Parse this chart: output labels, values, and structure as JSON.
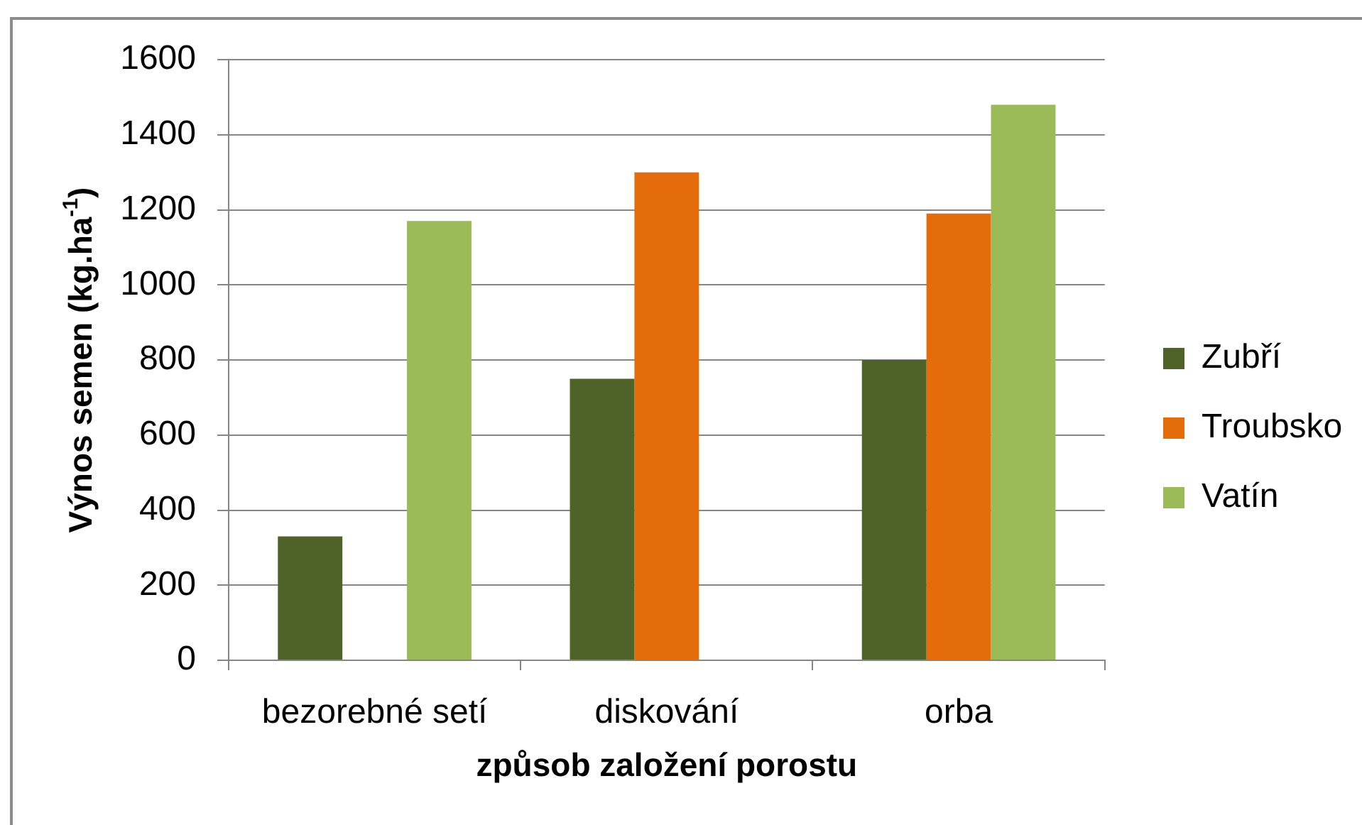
{
  "chart_data": {
    "type": "bar",
    "xlabel": "způsob založení porostu",
    "ylabel": "Výnos semen (kg.ha$^{-1}$)",
    "categories": [
      "bezorebné setí",
      "diskování",
      "orba"
    ],
    "series": [
      {
        "name": "Zubří",
        "color": "#4f6228",
        "values": [
          330,
          750,
          800
        ]
      },
      {
        "name": "Troubsko",
        "color": "#e46c0a",
        "values": [
          null,
          1300,
          1190
        ]
      },
      {
        "name": "Vatín",
        "color": "#9bbb59",
        "values": [
          1170,
          null,
          1480
        ]
      }
    ],
    "ylim": [
      0,
      1600
    ],
    "yticks": [
      0,
      200,
      400,
      600,
      800,
      1000,
      1200,
      1400,
      1600
    ],
    "grid": "y",
    "legend": "right"
  }
}
